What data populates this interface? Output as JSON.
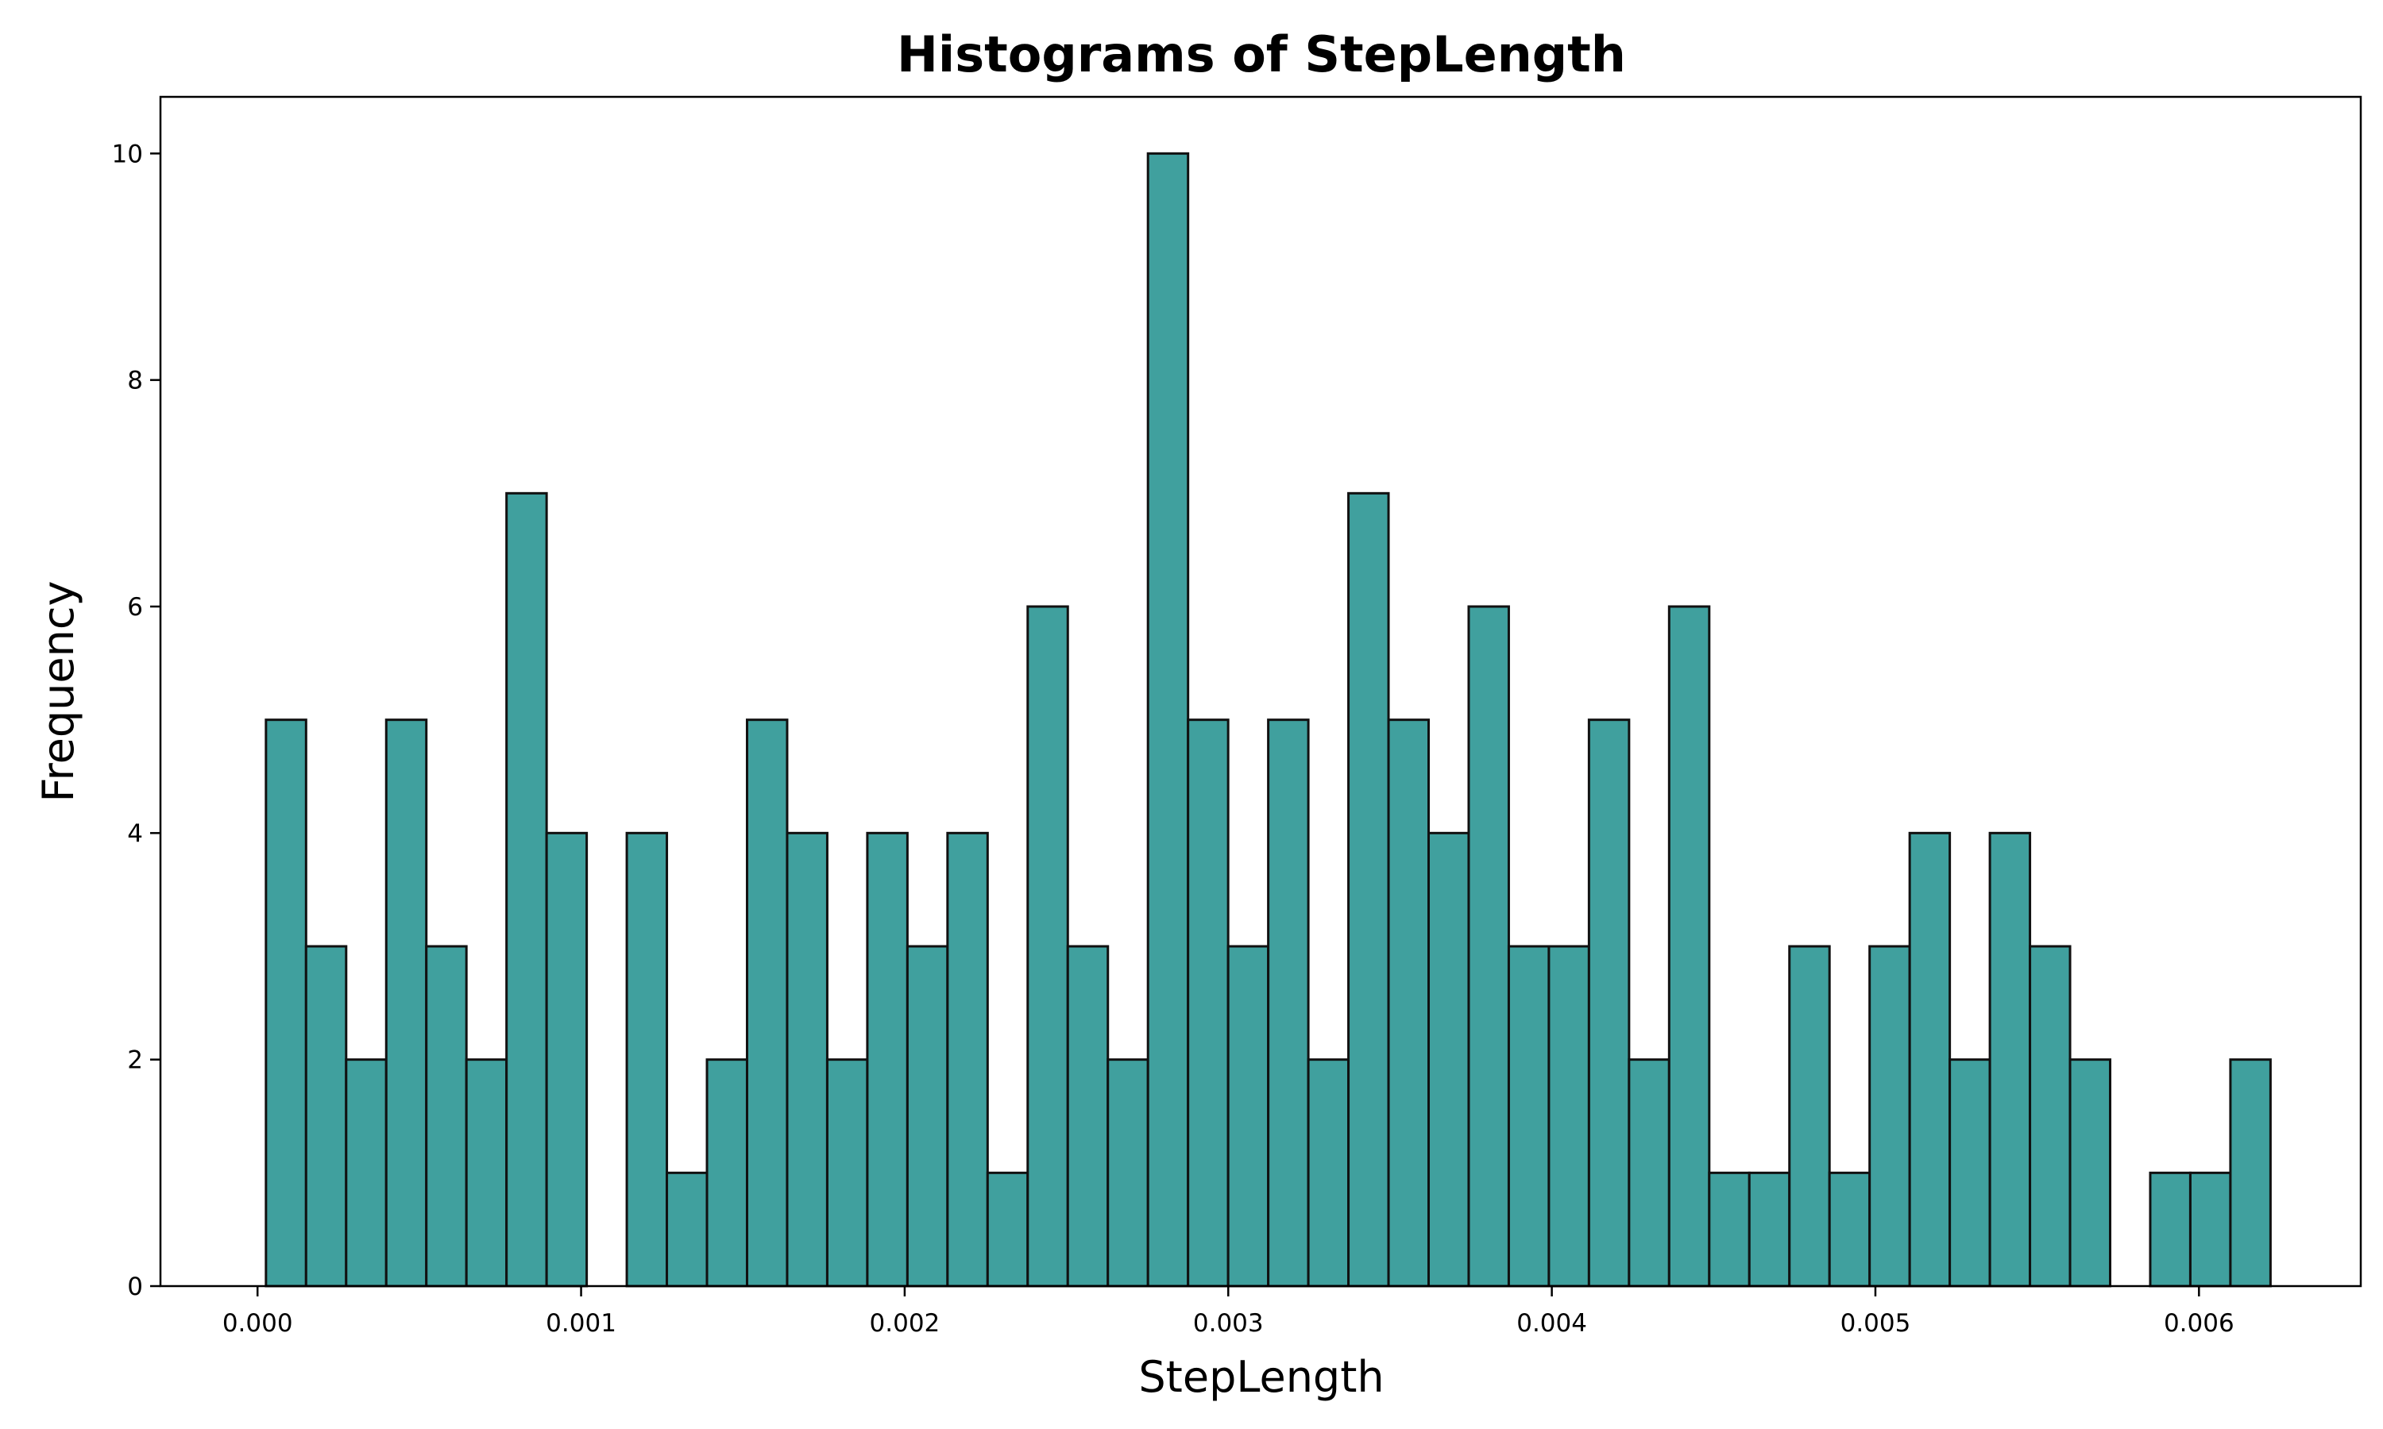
{
  "chart_data": {
    "type": "bar",
    "title": "Histograms of StepLength",
    "xlabel": "StepLength",
    "ylabel": "Frequency",
    "bin_start": 2.61e-05,
    "bin_width": 0.0001239,
    "values": [
      5,
      3,
      2,
      5,
      3,
      2,
      7,
      4,
      0,
      4,
      1,
      2,
      5,
      4,
      2,
      4,
      3,
      4,
      1,
      6,
      3,
      2,
      10,
      5,
      3,
      5,
      2,
      7,
      5,
      4,
      6,
      3,
      3,
      5,
      2,
      6,
      1,
      1,
      3,
      1,
      3,
      4,
      2,
      4,
      3,
      2,
      0,
      1,
      1,
      2
    ],
    "xlim": [
      -0.0003,
      0.0065
    ],
    "ylim": [
      0,
      10.5
    ],
    "x_ticks": [
      {
        "value": 0.0,
        "label": "0.000"
      },
      {
        "value": 0.001,
        "label": "0.001"
      },
      {
        "value": 0.002,
        "label": "0.002"
      },
      {
        "value": 0.003,
        "label": "0.003"
      },
      {
        "value": 0.004,
        "label": "0.004"
      },
      {
        "value": 0.005,
        "label": "0.005"
      },
      {
        "value": 0.006,
        "label": "0.006"
      }
    ],
    "y_ticks": [
      {
        "value": 0,
        "label": "0"
      },
      {
        "value": 2,
        "label": "2"
      },
      {
        "value": 4,
        "label": "4"
      },
      {
        "value": 6,
        "label": "6"
      },
      {
        "value": 8,
        "label": "8"
      },
      {
        "value": 10,
        "label": "10"
      }
    ],
    "bar_color": "#40a09e",
    "edge_color": "#111111",
    "grid": false
  }
}
